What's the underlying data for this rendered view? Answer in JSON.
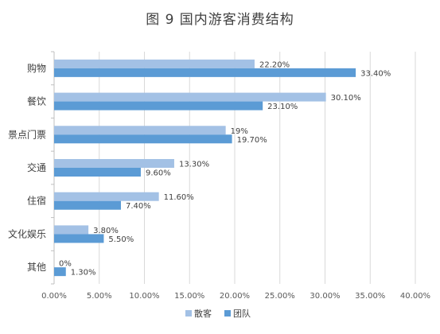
{
  "chart_data": {
    "type": "bar",
    "orientation": "horizontal",
    "title": "图 9 国内游客消费结构",
    "categories": [
      "购物",
      "餐饮",
      "景点门票",
      "交通",
      "住宿",
      "文化娱乐",
      "其他"
    ],
    "series": [
      {
        "name": "散客",
        "color": "#A3C1E5",
        "values": [
          22.2,
          30.1,
          19,
          13.3,
          11.6,
          3.8,
          0
        ],
        "labels": [
          "22.20%",
          "30.10%",
          "19%",
          "13.30%",
          "11.60%",
          "3.80%",
          "0%"
        ]
      },
      {
        "name": "团队",
        "color": "#5B9BD5",
        "values": [
          33.4,
          23.1,
          19.7,
          9.6,
          7.4,
          5.5,
          1.3
        ],
        "labels": [
          "33.40%",
          "23.10%",
          "19.70%",
          "9.60%",
          "7.40%",
          "5.50%",
          "1.30%"
        ]
      }
    ],
    "xlim": [
      0,
      40
    ],
    "xticks": [
      0,
      5,
      10,
      15,
      20,
      25,
      30,
      35,
      40
    ],
    "xtick_labels": [
      "0.00%",
      "5.00%",
      "10.00%",
      "15.00%",
      "20.00%",
      "25.00%",
      "30.00%",
      "35.00%",
      "40.00%"
    ],
    "grid": "vertical",
    "legend_position": "bottom",
    "axis_line_color": "#BFBFBF",
    "grid_color": "#D9D9D9"
  }
}
